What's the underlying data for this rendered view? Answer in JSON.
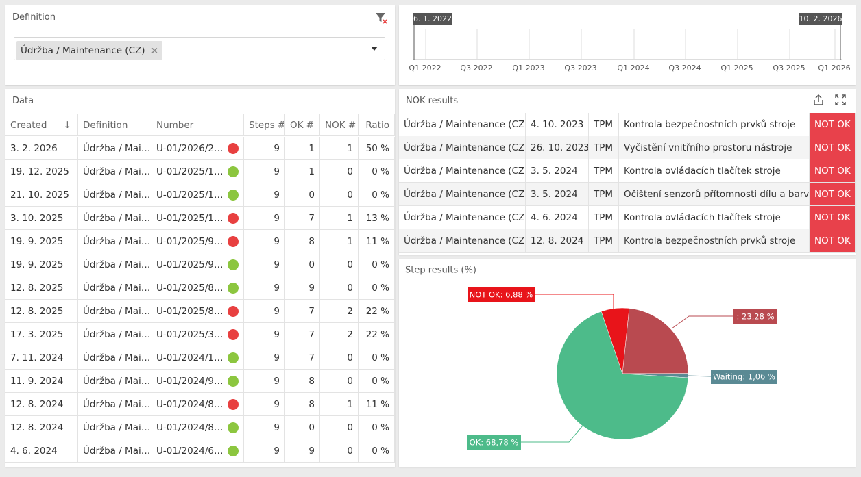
{
  "definition_panel": {
    "title": "Definition",
    "selected": "Údržba / Maintenance (CZ)"
  },
  "timeline": {
    "start_label": "6. 1. 2022",
    "end_label": "10. 2. 2026",
    "ticks": [
      "Q1 2022",
      "Q3 2022",
      "Q1 2023",
      "Q3 2023",
      "Q1 2024",
      "Q3 2024",
      "Q1 2025",
      "Q3 2025",
      "Q1 2026"
    ]
  },
  "data_panel": {
    "title": "Data",
    "columns": [
      "Created",
      "Definition",
      "Number",
      "Steps #",
      "OK #",
      "NOK #",
      "Ratio"
    ],
    "rows": [
      [
        "3. 2. 2026",
        "Údržba / Mai…",
        "U-01/2026/2…",
        9,
        1,
        1,
        "50 %"
      ],
      [
        "19. 12. 2025",
        "Údržba / Mai…",
        "U-01/2025/1…",
        9,
        1,
        0,
        "0 %"
      ],
      [
        "21. 10. 2025",
        "Údržba / Mai…",
        "U-01/2025/1…",
        9,
        0,
        0,
        "0 %"
      ],
      [
        "3. 10. 2025",
        "Údržba / Mai…",
        "U-01/2025/1…",
        9,
        7,
        1,
        "13 %"
      ],
      [
        "19. 9. 2025",
        "Údržba / Mai…",
        "U-01/2025/9…",
        9,
        8,
        1,
        "11 %"
      ],
      [
        "19. 9. 2025",
        "Údržba / Mai…",
        "U-01/2025/9…",
        9,
        0,
        0,
        "0 %"
      ],
      [
        "12. 8. 2025",
        "Údržba / Mai…",
        "U-01/2025/8…",
        9,
        9,
        0,
        "0 %"
      ],
      [
        "12. 8. 2025",
        "Údržba / Mai…",
        "U-01/2025/8…",
        9,
        7,
        2,
        "22 %"
      ],
      [
        "17. 3. 2025",
        "Údržba / Mai…",
        "U-01/2025/3…",
        9,
        7,
        2,
        "22 %"
      ],
      [
        "7. 11. 2024",
        "Údržba / Mai…",
        "U-01/2024/1…",
        9,
        7,
        0,
        "0 %"
      ],
      [
        "11. 9. 2024",
        "Údržba / Mai…",
        "U-01/2024/9…",
        9,
        8,
        0,
        "0 %"
      ],
      [
        "12. 8. 2024",
        "Údržba / Mai…",
        "U-01/2024/8…",
        9,
        8,
        1,
        "11 %"
      ],
      [
        "12. 8. 2024",
        "Údržba / Mai…",
        "U-01/2024/8…",
        9,
        0,
        0,
        "0 %"
      ],
      [
        "4. 6. 2024",
        "Údržba / Mai…",
        "U-01/2024/6…",
        9,
        9,
        0,
        "0 %"
      ]
    ],
    "status_colors": [
      "#e84040",
      "#8cc63f",
      "#8cc63f",
      "#e84040",
      "#e84040",
      "#8cc63f",
      "#8cc63f",
      "#e84040",
      "#e84040",
      "#8cc63f",
      "#8cc63f",
      "#e84040",
      "#8cc63f",
      "#8cc63f"
    ]
  },
  "nok_panel": {
    "title": "NOK results",
    "rows": [
      [
        "Údržba / Maintenance (CZ)",
        "4. 10. 2023",
        "TPM",
        "Kontrola bezpečnostních prvků stroje",
        "NOT OK"
      ],
      [
        "Údržba / Maintenance (CZ)",
        "26. 10. 2023",
        "TPM",
        "Vyčistění vnitřního prostoru nástroje",
        "NOT OK"
      ],
      [
        "Údržba / Maintenance (CZ)",
        "3. 5. 2024",
        "TPM",
        "Kontrola ovládacích tlačítek stroje",
        "NOT OK"
      ],
      [
        "Údržba / Maintenance (CZ)",
        "3. 5. 2024",
        "TPM",
        "Očištení senzorů přítomnosti dílu a barvy",
        "NOT OK"
      ],
      [
        "Údržba / Maintenance (CZ)",
        "4. 6. 2024",
        "TPM",
        "Kontrola ovládacích tlačítek stroje",
        "NOT OK"
      ],
      [
        "Údržba / Maintenance (CZ)",
        "12. 8. 2024",
        "TPM",
        "Kontrola bezpečnostních prvků stroje",
        "NOT OK"
      ]
    ]
  },
  "chart_data": {
    "type": "pie",
    "title": "Step results (%)",
    "values": [
      6.88,
      23.28,
      1.06,
      68.78
    ],
    "value_labels": [
      "NOT OK: 6,88 %",
      ": 23,28 %",
      "Waiting: 1,06 %",
      "OK: 68,78 %"
    ],
    "colors": [
      "#e8141a",
      "#b94a50",
      "#5a8a94",
      "#4dbb8a"
    ]
  }
}
